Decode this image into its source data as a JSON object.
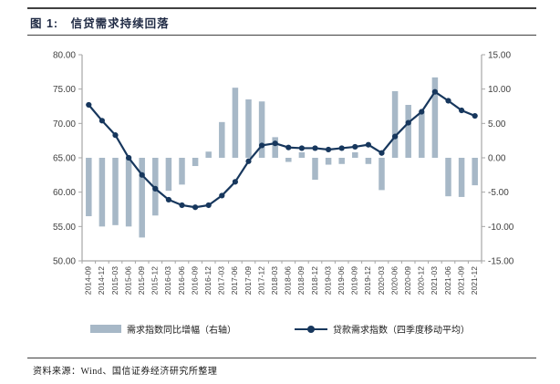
{
  "header": {
    "title": "图 1:　信贷需求持续回落"
  },
  "footer": {
    "source": "资料来源：Wind、国信证券经济研究所整理"
  },
  "colors": {
    "bar": "#a7b8c7",
    "line": "#17375d",
    "axis": "#a6a6a6",
    "tick_text": "#404040",
    "title_text": "#1f2a44",
    "rule": "#404040"
  },
  "chart_data": {
    "type": "bar+line combo",
    "title": "信贷需求持续回落",
    "xlabel": "",
    "ylabel_left": "",
    "ylabel_right": "",
    "grid": false,
    "legend_position": "bottom",
    "categories": [
      "2014-09",
      "2014-12",
      "2015-03",
      "2015-06",
      "2015-09",
      "2015-12",
      "2016-03",
      "2016-06",
      "2016-09",
      "2016-12",
      "2017-03",
      "2017-06",
      "2017-09",
      "2017-12",
      "2018-03",
      "2018-06",
      "2018-09",
      "2018-12",
      "2019-03",
      "2019-06",
      "2019-09",
      "2019-12",
      "2020-03",
      "2020-06",
      "2020-09",
      "2020-12",
      "2021-03",
      "2021-06",
      "2021-09",
      "2021-12"
    ],
    "series": [
      {
        "name": "需求指数同比增幅（右轴）",
        "type": "bar",
        "axis": "right",
        "values": [
          -8.5,
          -10.0,
          -9.8,
          -10.0,
          -11.6,
          -8.4,
          -4.8,
          -3.9,
          -1.2,
          0.9,
          5.2,
          10.2,
          8.5,
          8.2,
          3.0,
          -0.6,
          0.8,
          -3.2,
          -1.0,
          -0.9,
          0.8,
          -0.9,
          -4.7,
          9.7,
          7.7,
          6.6,
          11.7,
          -5.6,
          -5.7,
          -4.0
        ]
      },
      {
        "name": "贷款需求指数（四季度移动平均）",
        "type": "line",
        "axis": "left",
        "values": [
          72.7,
          70.4,
          68.3,
          65.0,
          62.5,
          60.5,
          58.9,
          58.1,
          57.8,
          58.1,
          59.5,
          61.5,
          64.5,
          66.8,
          67.1,
          66.5,
          66.4,
          66.4,
          66.2,
          66.4,
          66.6,
          66.9,
          65.7,
          68.1,
          70.1,
          71.7,
          74.6,
          73.3,
          71.9,
          71.1
        ]
      }
    ],
    "left_axis": {
      "min": 50,
      "max": 80,
      "ticks": [
        "80.00",
        "75.00",
        "70.00",
        "65.00",
        "60.00",
        "55.00",
        "50.00"
      ]
    },
    "right_axis": {
      "min": -15,
      "max": 15,
      "ticks": [
        "15.00",
        "10.00",
        "5.00",
        "0.00",
        "-5.00",
        "-10.00",
        "-15.00"
      ]
    }
  }
}
